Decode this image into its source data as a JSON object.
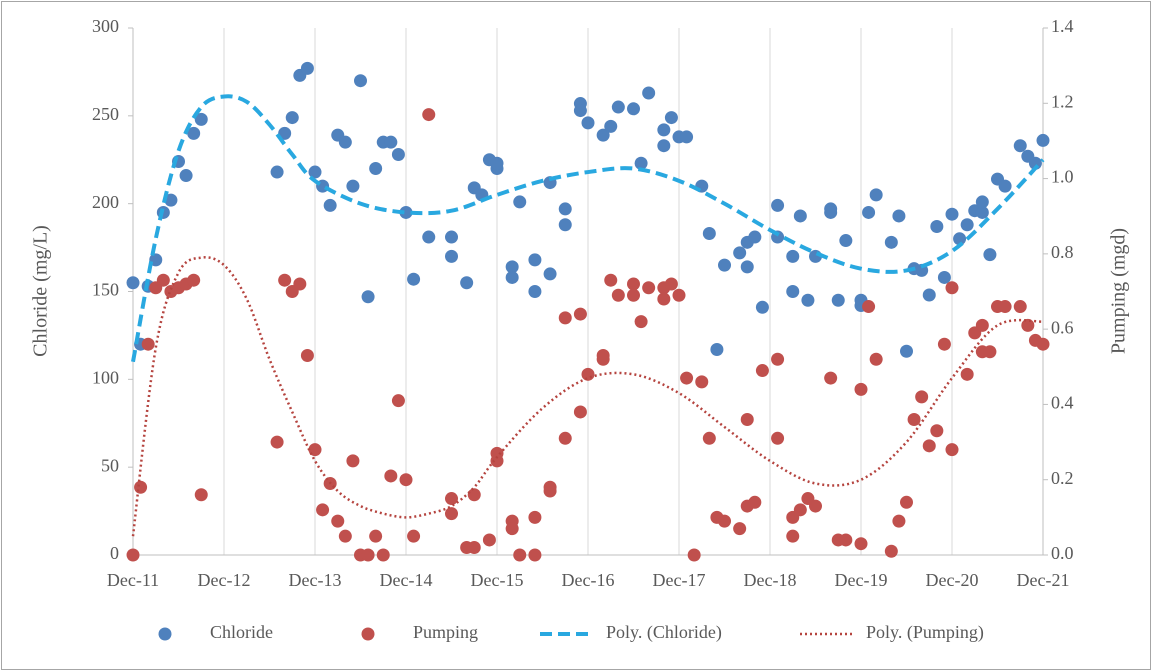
{
  "chart_data": {
    "type": "scatter",
    "y_label": "Chloride (mg/L)",
    "y2_label": "Pumping (mgd)",
    "xlim": [
      "2011-12",
      "2021-12"
    ],
    "xticks": [
      {
        "value": "2011-12",
        "label": "Dec-11"
      },
      {
        "value": "2012-12",
        "label": "Dec-12"
      },
      {
        "value": "2013-12",
        "label": "Dec-13"
      },
      {
        "value": "2014-12",
        "label": "Dec-14"
      },
      {
        "value": "2015-12",
        "label": "Dec-15"
      },
      {
        "value": "2016-12",
        "label": "Dec-16"
      },
      {
        "value": "2017-12",
        "label": "Dec-17"
      },
      {
        "value": "2018-12",
        "label": "Dec-18"
      },
      {
        "value": "2019-12",
        "label": "Dec-19"
      },
      {
        "value": "2020-12",
        "label": "Dec-20"
      },
      {
        "value": "2021-12",
        "label": "Dec-21"
      }
    ],
    "ylim": [
      0,
      300
    ],
    "yticks": [
      0,
      50,
      100,
      150,
      200,
      250,
      300
    ],
    "y2lim": [
      0,
      1.4
    ],
    "y2ticks": [
      {
        "value": 0,
        "label": "0.0"
      },
      0.2,
      0.4,
      0.6,
      0.8,
      {
        "value": 1,
        "label": "1.0"
      },
      1.2,
      1.4
    ],
    "grid": true,
    "legend": "bottom",
    "series": [
      {
        "name": "Chloride",
        "color": "#4f81bd",
        "line_style": "markers",
        "axis": "y",
        "x": [
          "2011-12",
          "2012-01",
          "2012-02",
          "2012-03",
          "2012-04",
          "2012-05",
          "2012-06",
          "2012-07",
          "2012-08",
          "2012-09",
          "2013-07",
          "2013-08",
          "2013-09",
          "2013-10",
          "2013-11",
          "2013-12",
          "2014-01",
          "2014-02",
          "2014-03",
          "2014-04",
          "2014-05",
          "2014-06",
          "2014-07",
          "2014-08",
          "2014-09",
          "2014-10",
          "2014-11",
          "2014-12",
          "2015-01",
          "2015-03",
          "2015-06",
          "2015-06",
          "2015-08",
          "2015-09",
          "2015-10",
          "2015-11",
          "2015-12",
          "2015-12",
          "2016-02",
          "2016-02",
          "2016-03",
          "2016-05",
          "2016-05",
          "2016-07",
          "2016-07",
          "2016-09",
          "2016-09",
          "2016-11",
          "2016-11",
          "2016-12",
          "2017-02",
          "2017-03",
          "2017-04",
          "2017-06",
          "2017-07",
          "2017-08",
          "2017-10",
          "2017-10",
          "2017-11",
          "2017-12",
          "2018-01",
          "2018-03",
          "2018-04",
          "2018-05",
          "2018-06",
          "2018-08",
          "2018-09",
          "2018-09",
          "2018-10",
          "2018-11",
          "2019-01",
          "2019-01",
          "2019-03",
          "2019-03",
          "2019-04",
          "2019-05",
          "2019-06",
          "2019-08",
          "2019-08",
          "2019-09",
          "2019-10",
          "2019-12",
          "2019-12",
          "2020-01",
          "2020-02",
          "2020-04",
          "2020-05",
          "2020-06",
          "2020-07",
          "2020-08",
          "2020-09",
          "2020-10",
          "2020-11",
          "2020-12",
          "2021-01",
          "2021-02",
          "2021-03",
          "2021-04",
          "2021-04",
          "2021-05",
          "2021-06",
          "2021-07",
          "2021-09",
          "2021-10",
          "2021-11",
          "2021-12"
        ],
        "values": [
          155,
          120,
          153,
          168,
          195,
          202,
          224,
          216,
          240,
          248,
          218,
          240,
          249,
          273,
          277,
          218,
          210,
          199,
          239,
          235,
          210,
          270,
          147,
          220,
          235,
          235,
          228,
          195,
          157,
          181,
          181,
          170,
          155,
          209,
          205,
          225,
          220,
          223,
          164,
          158,
          201,
          168,
          150,
          160,
          212,
          197,
          188,
          257,
          253,
          246,
          239,
          244,
          255,
          254,
          223,
          263,
          233,
          242,
          249,
          238,
          238,
          210,
          183,
          117,
          165,
          172,
          178,
          164,
          181,
          141,
          199,
          181,
          170,
          150,
          193,
          145,
          170,
          197,
          195,
          145,
          179,
          142,
          145,
          195,
          205,
          178,
          193,
          116,
          163,
          162,
          148,
          187,
          158,
          194,
          180,
          188,
          196,
          195,
          201,
          171,
          214,
          210,
          233,
          227,
          223,
          236
        ]
      },
      {
        "name": "Pumping",
        "color": "#c0504d",
        "line_style": "markers",
        "axis": "y2",
        "x": [
          "2011-12",
          "2012-01",
          "2012-02",
          "2012-03",
          "2012-04",
          "2012-05",
          "2012-06",
          "2012-07",
          "2012-08",
          "2012-09",
          "2013-07",
          "2013-08",
          "2013-09",
          "2013-10",
          "2013-11",
          "2013-12",
          "2014-01",
          "2014-02",
          "2014-03",
          "2014-04",
          "2014-05",
          "2014-06",
          "2014-07",
          "2014-08",
          "2014-09",
          "2014-10",
          "2014-11",
          "2014-12",
          "2015-01",
          "2015-03",
          "2015-06",
          "2015-06",
          "2015-08",
          "2015-09",
          "2015-09",
          "2015-11",
          "2015-12",
          "2015-12",
          "2016-02",
          "2016-02",
          "2016-03",
          "2016-05",
          "2016-05",
          "2016-07",
          "2016-07",
          "2016-09",
          "2016-09",
          "2016-11",
          "2016-11",
          "2016-12",
          "2017-02",
          "2017-02",
          "2017-03",
          "2017-04",
          "2017-06",
          "2017-06",
          "2017-07",
          "2017-08",
          "2017-10",
          "2017-10",
          "2017-11",
          "2017-12",
          "2018-01",
          "2018-02",
          "2018-03",
          "2018-04",
          "2018-05",
          "2018-06",
          "2018-08",
          "2018-09",
          "2018-09",
          "2018-10",
          "2018-11",
          "2019-01",
          "2019-01",
          "2019-03",
          "2019-03",
          "2019-04",
          "2019-05",
          "2019-06",
          "2019-08",
          "2019-09",
          "2019-10",
          "2019-12",
          "2019-12",
          "2020-01",
          "2020-02",
          "2020-04",
          "2020-05",
          "2020-06",
          "2020-07",
          "2020-08",
          "2020-09",
          "2020-10",
          "2020-11",
          "2020-12",
          "2020-12",
          "2021-02",
          "2021-03",
          "2021-04",
          "2021-04",
          "2021-05",
          "2021-06",
          "2021-07",
          "2021-09",
          "2021-10",
          "2021-11",
          "2021-12"
        ],
        "values": [
          0,
          0.18,
          0.56,
          0.71,
          0.73,
          0.7,
          0.71,
          0.72,
          0.73,
          0.16,
          0.3,
          0.73,
          0.7,
          0.72,
          0.53,
          0.28,
          0.12,
          0.19,
          0.09,
          0.05,
          0.25,
          0,
          0,
          0.05,
          0,
          0.21,
          0.41,
          0.2,
          0.05,
          1.17,
          0.11,
          0.15,
          0.02,
          0.02,
          0.16,
          0.04,
          0.27,
          0.25,
          0.09,
          0.07,
          0,
          0,
          0.1,
          0.18,
          0.17,
          0.31,
          0.63,
          0.64,
          0.38,
          0.48,
          0.52,
          0.53,
          0.73,
          0.69,
          0.72,
          0.69,
          0.62,
          0.71,
          0.71,
          0.68,
          0.72,
          0.69,
          0.47,
          0,
          0.46,
          0.31,
          0.1,
          0.09,
          0.07,
          0.36,
          0.13,
          0.14,
          0.49,
          0.52,
          0.31,
          0.05,
          0.1,
          0.12,
          0.15,
          0.13,
          0.47,
          0.04,
          0.04,
          0.03,
          0.44,
          0.66,
          0.52,
          0.01,
          0.09,
          0.14,
          0.36,
          0.42,
          0.29,
          0.33,
          0.56,
          0.28,
          0.71,
          0.48,
          0.59,
          0.61,
          0.54,
          0.54,
          0.66,
          0.66,
          0.66,
          0.61,
          0.57,
          0.56
        ]
      },
      {
        "name": "Poly. (Chloride)",
        "color": "#29a8e0",
        "line_style": "dashed",
        "axis": "y",
        "x": [
          "2011-12",
          "2012-03",
          "2012-06",
          "2012-09",
          "2012-12",
          "2013-03",
          "2013-06",
          "2013-09",
          "2013-12",
          "2014-06",
          "2014-12",
          "2015-06",
          "2015-12",
          "2016-06",
          "2016-12",
          "2017-06",
          "2017-12",
          "2018-06",
          "2018-12",
          "2019-06",
          "2019-12",
          "2020-06",
          "2020-12",
          "2021-06",
          "2021-12"
        ],
        "values": [
          110,
          180,
          230,
          255,
          261,
          258,
          245,
          228,
          213,
          200,
          195,
          196,
          205,
          213,
          218,
          220,
          213,
          200,
          185,
          172,
          163,
          162,
          173,
          197,
          225
        ]
      },
      {
        "name": "Poly. (Pumping)",
        "color": "#b5443f",
        "line_style": "dotted",
        "axis": "y2",
        "x": [
          "2011-12",
          "2012-03",
          "2012-06",
          "2012-09",
          "2012-12",
          "2013-03",
          "2013-06",
          "2013-09",
          "2013-12",
          "2014-03",
          "2014-06",
          "2014-09",
          "2014-12",
          "2015-03",
          "2015-06",
          "2015-09",
          "2015-12",
          "2016-06",
          "2016-12",
          "2017-06",
          "2017-12",
          "2018-06",
          "2018-12",
          "2019-06",
          "2019-12",
          "2020-06",
          "2020-12",
          "2021-06",
          "2021-12"
        ],
        "values": [
          0.05,
          0.55,
          0.75,
          0.79,
          0.77,
          0.68,
          0.52,
          0.38,
          0.25,
          0.17,
          0.13,
          0.11,
          0.1,
          0.11,
          0.13,
          0.18,
          0.26,
          0.39,
          0.47,
          0.48,
          0.43,
          0.34,
          0.25,
          0.19,
          0.2,
          0.3,
          0.47,
          0.61,
          0.62
        ]
      }
    ]
  }
}
